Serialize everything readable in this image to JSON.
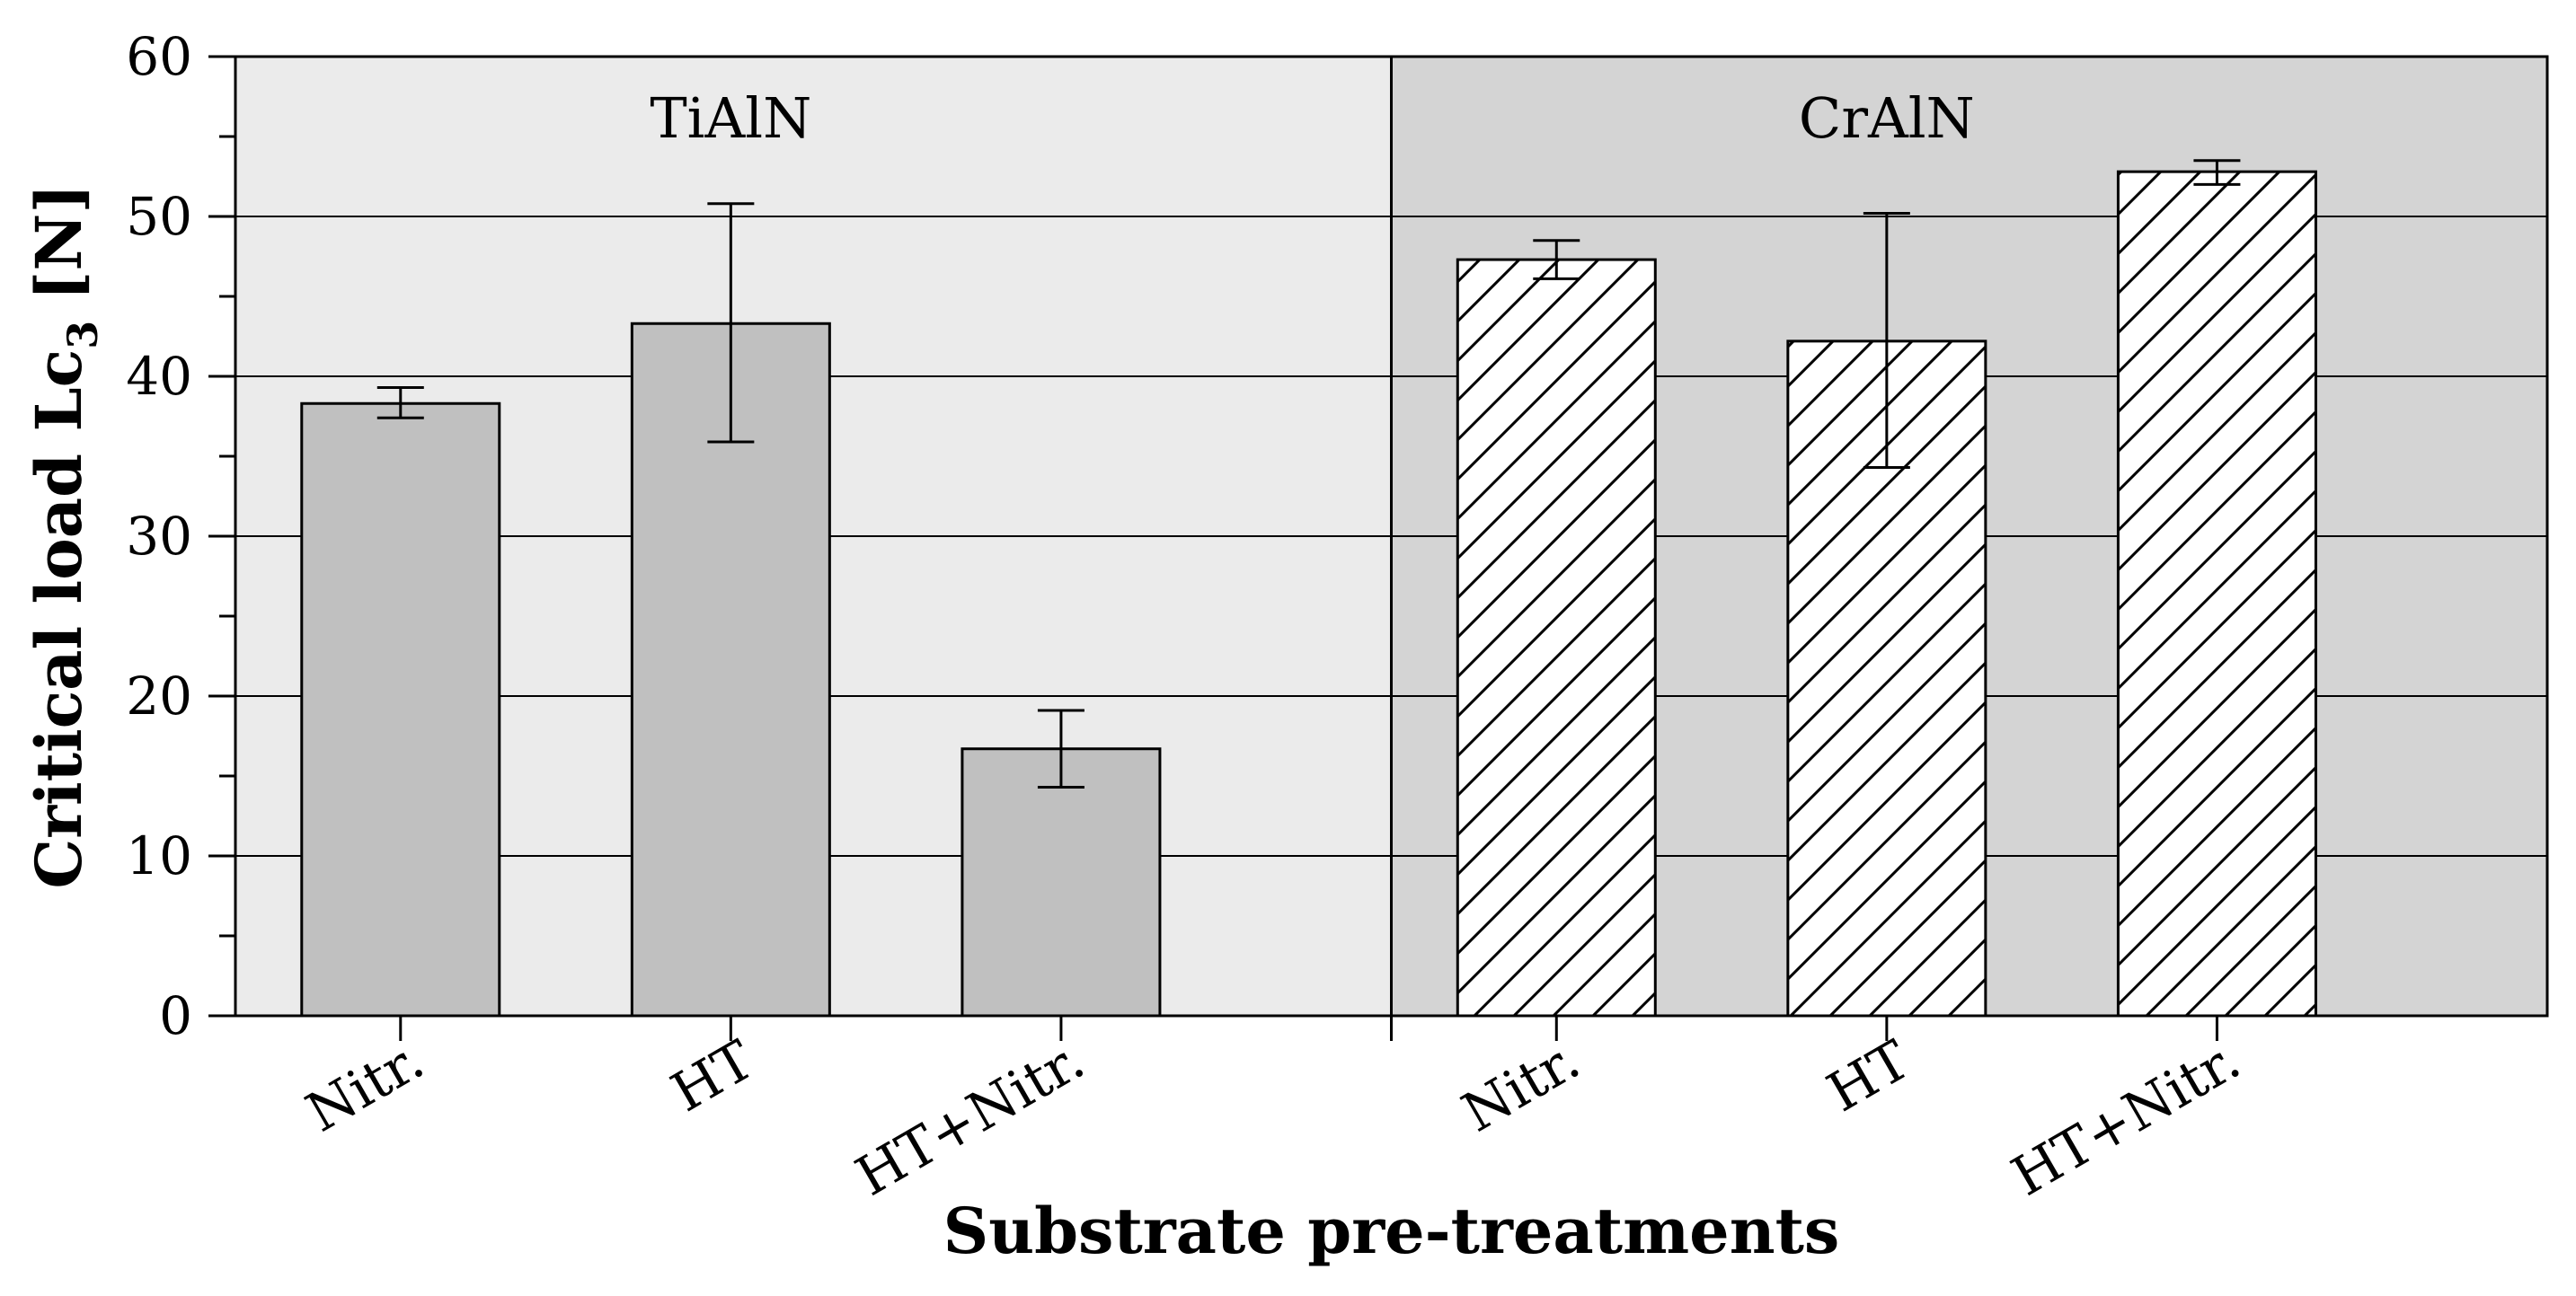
{
  "chart_data": {
    "type": "bar",
    "title": "",
    "xlabel": "Substrate pre-treatments",
    "ylabel": {
      "main": "Critical load Lc",
      "subscript": "3",
      "unit": "[N]"
    },
    "ylim": [
      0,
      60
    ],
    "yticks": [
      "0",
      "10",
      "20",
      "30",
      "40",
      "50",
      "60"
    ],
    "grid": true,
    "panels": [
      {
        "name": "TiAlN",
        "fill": "#c0c0c0",
        "background": "#ebebeb",
        "pattern": "solid",
        "categories": [
          "Nitr.",
          "HT",
          "HT+Nitr."
        ],
        "values": [
          38.3,
          43.3,
          16.7
        ],
        "error_low": [
          37.4,
          35.9,
          14.3
        ],
        "error_high": [
          39.3,
          50.8,
          19.1
        ]
      },
      {
        "name": "CrAlN",
        "fill": "#ffffff",
        "background": "#d4d4d4",
        "pattern": "hatched",
        "categories": [
          "Nitr.",
          "HT",
          "HT+Nitr."
        ],
        "values": [
          47.3,
          42.2,
          52.8
        ],
        "error_low": [
          46.1,
          34.3,
          52.0
        ],
        "error_high": [
          48.5,
          50.2,
          53.5
        ]
      }
    ]
  }
}
